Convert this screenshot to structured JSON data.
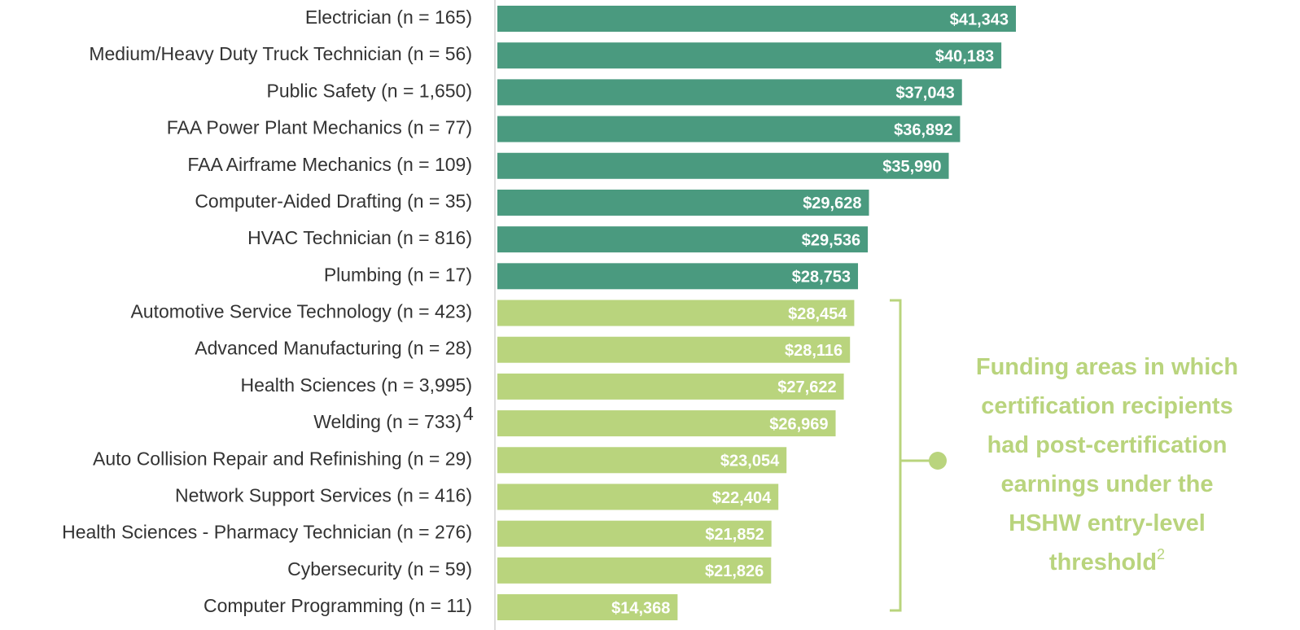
{
  "chart_data": {
    "type": "bar",
    "orientation": "horizontal",
    "categories": [
      "Electrician (n = 165)",
      "Medium/Heavy Duty Truck Technician (n = 56)",
      "Public Safety (n = 1,650)",
      "FAA  Power Plant Mechanics (n = 77)",
      "FAA Airframe Mechanics (n = 109)",
      "Computer-Aided Drafting (n = 35)",
      "HVAC Technician (n = 816)",
      "Plumbing (n = 17)",
      "Automotive Service Technology (n = 423)",
      "Advanced Manufacturing (n = 28)",
      "Health Sciences (n = 3,995)",
      "Welding (n = 733)",
      "Auto Collision Repair and Refinishing (n = 29)",
      "Network Support Services (n = 416)",
      "Health Sciences - Pharmacy Technician (n = 276)",
      "Cybersecurity (n = 59)",
      "Computer Programming (n = 11)"
    ],
    "category_superscripts": [
      null,
      null,
      null,
      null,
      null,
      null,
      null,
      null,
      null,
      null,
      null,
      "4",
      null,
      null,
      null,
      null,
      null
    ],
    "values": [
      41343,
      40183,
      37043,
      36892,
      35990,
      29628,
      29536,
      28753,
      28454,
      28116,
      27622,
      26969,
      23054,
      22404,
      21852,
      21826,
      14368
    ],
    "value_labels": [
      "$41,343",
      "$40,183",
      "$37,043",
      "$36,892",
      "$35,990",
      "$29,628",
      "$29,536",
      "$28,753",
      "$28,454",
      "$28,116",
      "$27,622",
      "$26,969",
      "$23,054",
      "$22,404",
      "$21,852",
      "$21,826",
      "$14,368"
    ],
    "colors": [
      "#4a9a7f",
      "#4a9a7f",
      "#4a9a7f",
      "#4a9a7f",
      "#4a9a7f",
      "#4a9a7f",
      "#4a9a7f",
      "#4a9a7f",
      "#b9d47d",
      "#b9d47d",
      "#b9d47d",
      "#b9d47d",
      "#b9d47d",
      "#b9d47d",
      "#b9d47d",
      "#b9d47d",
      "#b9d47d"
    ],
    "annotation_lines": [
      "Funding areas in which",
      "certification recipients",
      "had post-certification",
      "earnings under the",
      "HSHW entry-level",
      "threshold"
    ],
    "annotation_superscript": "2"
  }
}
